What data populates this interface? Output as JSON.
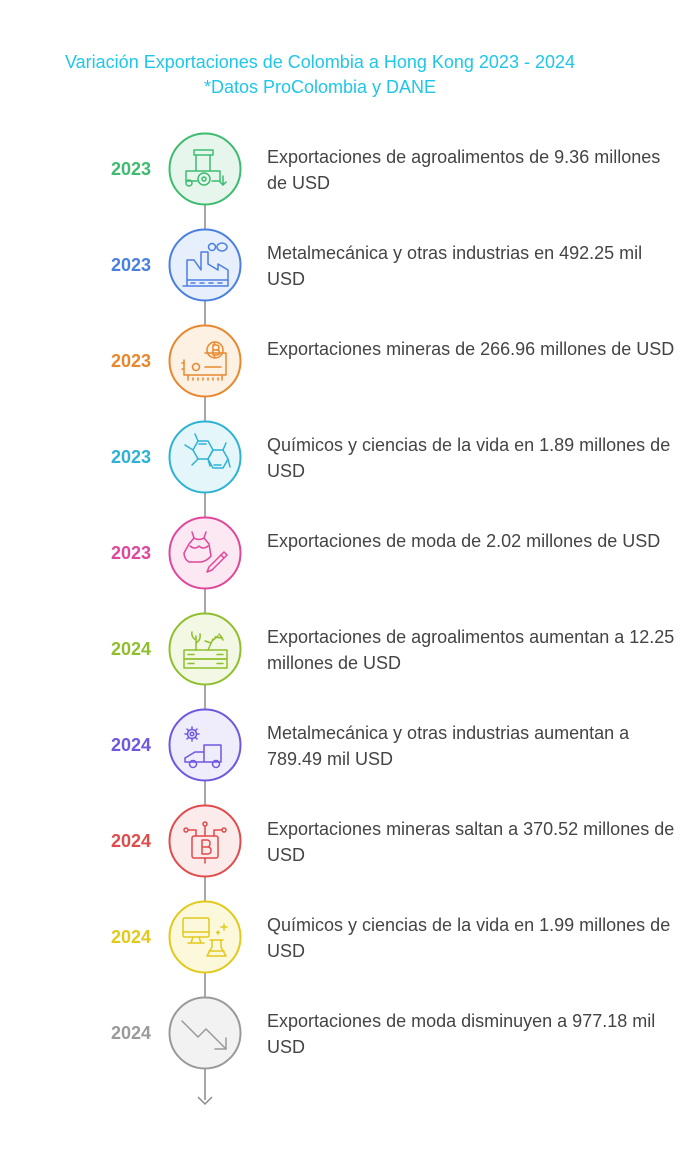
{
  "title": "Variación Exportaciones de Colombia a Hong Kong 2023 - 2024",
  "subtitle": "*Datos ProColombia y DANE",
  "items": [
    {
      "year": "2023",
      "text": "Exportaciones de agroalimentos de 9.36 millones de USD",
      "icon": "tractor-icon",
      "color": "#3dbb6e",
      "fill": "#e6f6ec"
    },
    {
      "year": "2023",
      "text": "Metalmecánica y otras industrias en 492.25 mil USD",
      "icon": "factory-icon",
      "color": "#4a7fe0",
      "fill": "#e8effc"
    },
    {
      "year": "2023",
      "text": "Exportaciones mineras de 266.96 millones de USD",
      "icon": "mining-rig-icon",
      "color": "#e9872d",
      "fill": "#fdf1e4"
    },
    {
      "year": "2023",
      "text": "Químicos y ciencias de la vida en 1.89 millones de USD",
      "icon": "molecule-icon",
      "color": "#2db2d6",
      "fill": "#e5f6fb"
    },
    {
      "year": "2023",
      "text": "Exportaciones de moda de 2.02 millones de USD",
      "icon": "fashion-design-icon",
      "color": "#e0479a",
      "fill": "#fce8f3"
    },
    {
      "year": "2024",
      "text": "Exportaciones de agroalimentos aumentan a 12.25 millones de USD",
      "icon": "sprout-crate-icon",
      "color": "#8fbf2c",
      "fill": "#f2f8e4"
    },
    {
      "year": "2024",
      "text": "Metalmecánica y otras industrias aumentan a 789.49 mil USD",
      "icon": "gear-truck-icon",
      "color": "#7057e0",
      "fill": "#efecfc"
    },
    {
      "year": "2024",
      "text": "Exportaciones mineras saltan a 370.52 millones de USD",
      "icon": "bitcoin-chip-icon",
      "color": "#e04b4b",
      "fill": "#fcebeb"
    },
    {
      "year": "2024",
      "text": "Químicos y ciencias de la vida en 1.99 millones de USD",
      "icon": "monitor-flask-icon",
      "color": "#e2c91b",
      "fill": "#fcf8dc"
    },
    {
      "year": "2024",
      "text": "Exportaciones de moda disminuyen a 977.18 mil USD",
      "icon": "trend-down-icon",
      "color": "#9a9a9a",
      "fill": "#f2f2f2"
    }
  ]
}
